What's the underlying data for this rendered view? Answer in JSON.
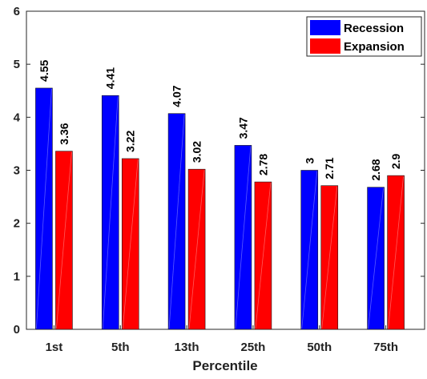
{
  "chart_data": {
    "type": "bar",
    "xlabel": "Percentile",
    "ylabel": "",
    "categories": [
      "1st",
      "5th",
      "13th",
      "25th",
      "50th",
      "75th"
    ],
    "series": [
      {
        "name": "Recession",
        "color": "#0000ff",
        "values": [
          4.55,
          4.41,
          4.07,
          3.47,
          3,
          2.68
        ],
        "labels": [
          "4.55",
          "4.41",
          "4.07",
          "3.47",
          "3",
          "2.68"
        ]
      },
      {
        "name": "Expansion",
        "color": "#ff0000",
        "values": [
          3.36,
          3.22,
          3.02,
          2.78,
          2.71,
          2.9
        ],
        "labels": [
          "3.36",
          "3.22",
          "3.02",
          "2.78",
          "2.71",
          "2.9"
        ]
      }
    ],
    "ylim": [
      0,
      6
    ],
    "yticks": [
      "0",
      "1",
      "2",
      "3",
      "4",
      "5",
      "6"
    ],
    "grid": false,
    "legend_position": "top-right"
  }
}
